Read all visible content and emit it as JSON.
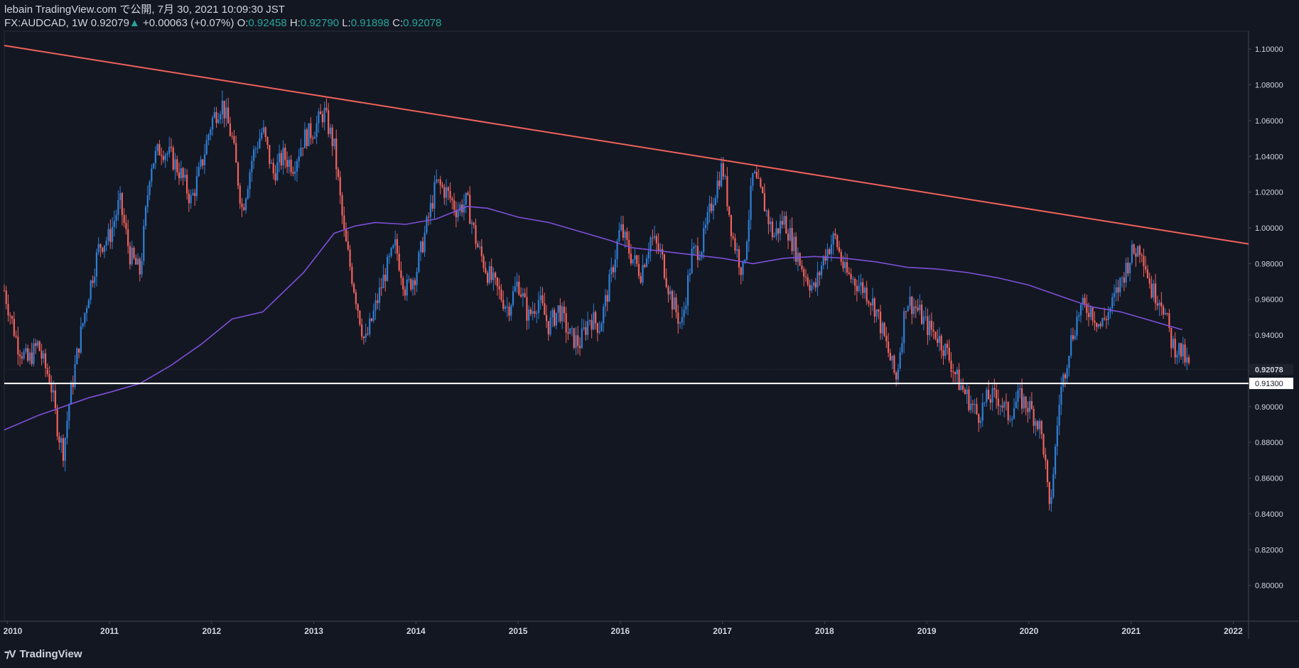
{
  "header": {
    "publisher_line": "lebain TradingView.com で公開, 7月 30, 2021 10:09:30 JST",
    "symbol": "FX:AUDCAD, 1W",
    "last": "0.92079",
    "change_arrow": "▲",
    "change": "+0.00063 (+0.07%)",
    "open_label": "O:",
    "open": "0.92458",
    "high_label": "H:",
    "high": "0.92790",
    "low_label": "L:",
    "low": "0.91898",
    "close_label": "C:",
    "close": "0.92078"
  },
  "brand": {
    "name": "TradingView",
    "logo_icon": "tradingview-logo-icon"
  },
  "colors": {
    "background": "#131722",
    "up_candle": "#2f7fd6",
    "down_candle": "#f0625c",
    "trendline": "#f0625c",
    "moving_average": "#7e4fd8",
    "support_line": "#ffffff",
    "axis_text": "#d1d4dc",
    "ohlc_value": "#26a69a"
  },
  "chart_data": {
    "type": "candlestick",
    "x_axis_labels": [
      "2010",
      "2011",
      "2012",
      "2013",
      "2014",
      "2015",
      "2016",
      "2017",
      "2018",
      "2019",
      "2020",
      "2021",
      "2022"
    ],
    "y_axis_labels": [
      "1.10000",
      "1.08000",
      "1.06000",
      "1.04000",
      "1.02000",
      "1.00000",
      "0.98000",
      "0.96000",
      "0.94000",
      "0.92000",
      "0.90000",
      "0.88000",
      "0.86000",
      "0.84000",
      "0.82000",
      "0.80000"
    ],
    "ylim": [
      0.78,
      1.11
    ],
    "xlim": [
      2009.97,
      2022.15
    ],
    "price_markers": [
      {
        "label": "0.92078",
        "value": 0.92078
      },
      {
        "label": "0.91300",
        "value": 0.913
      }
    ],
    "support_level": 0.913,
    "trendline": {
      "from": [
        2009.97,
        1.102
      ],
      "to": [
        2022.15,
        0.991
      ]
    },
    "moving_average": {
      "x": [
        2009.97,
        2010.3,
        2010.5,
        2010.8,
        2011.0,
        2011.3,
        2011.6,
        2011.9,
        2012.2,
        2012.5,
        2012.9,
        2013.2,
        2013.4,
        2013.6,
        2013.9,
        2014.2,
        2014.5,
        2014.7,
        2015.0,
        2015.3,
        2015.6,
        2015.9,
        2016.1,
        2016.4,
        2016.7,
        2017.0,
        2017.3,
        2017.6,
        2017.9,
        2018.2,
        2018.5,
        2018.8,
        2019.1,
        2019.4,
        2019.7,
        2020.0,
        2020.3,
        2020.6,
        2020.9,
        2021.2,
        2021.5
      ],
      "y": [
        0.887,
        0.895,
        0.899,
        0.905,
        0.908,
        0.913,
        0.923,
        0.935,
        0.949,
        0.953,
        0.975,
        0.997,
        1.001,
        1.003,
        1.002,
        1.005,
        1.012,
        1.011,
        1.006,
        1.003,
        0.998,
        0.993,
        0.989,
        0.987,
        0.985,
        0.983,
        0.98,
        0.983,
        0.984,
        0.983,
        0.981,
        0.978,
        0.977,
        0.975,
        0.972,
        0.968,
        0.962,
        0.956,
        0.953,
        0.948,
        0.943
      ]
    },
    "price_path": {
      "x": [
        2009.97,
        2010.1,
        2010.2,
        2010.3,
        2010.35,
        2010.42,
        2010.5,
        2010.55,
        2010.6,
        2010.7,
        2010.8,
        2010.9,
        2011.0,
        2011.1,
        2011.2,
        2011.3,
        2011.4,
        2011.5,
        2011.6,
        2011.7,
        2011.8,
        2011.9,
        2012.0,
        2012.1,
        2012.2,
        2012.3,
        2012.4,
        2012.5,
        2012.6,
        2012.7,
        2012.8,
        2012.9,
        2013.0,
        2013.1,
        2013.2,
        2013.3,
        2013.4,
        2013.5,
        2013.6,
        2013.7,
        2013.8,
        2013.9,
        2014.0,
        2014.1,
        2014.2,
        2014.3,
        2014.4,
        2014.5,
        2014.6,
        2014.7,
        2014.8,
        2014.9,
        2015.0,
        2015.1,
        2015.2,
        2015.3,
        2015.4,
        2015.5,
        2015.6,
        2015.7,
        2015.8,
        2015.9,
        2016.0,
        2016.1,
        2016.2,
        2016.3,
        2016.4,
        2016.5,
        2016.6,
        2016.7,
        2016.8,
        2016.9,
        2017.0,
        2017.1,
        2017.2,
        2017.3,
        2017.4,
        2017.5,
        2017.6,
        2017.7,
        2017.8,
        2017.9,
        2018.0,
        2018.1,
        2018.2,
        2018.3,
        2018.4,
        2018.5,
        2018.6,
        2018.7,
        2018.8,
        2018.9,
        2019.0,
        2019.1,
        2019.2,
        2019.3,
        2019.4,
        2019.5,
        2019.6,
        2019.7,
        2019.8,
        2019.9,
        2020.0,
        2020.1,
        2020.15,
        2020.2,
        2020.25,
        2020.3,
        2020.4,
        2020.5,
        2020.6,
        2020.7,
        2020.8,
        2020.9,
        2021.0,
        2021.1,
        2021.2,
        2021.3,
        2021.4,
        2021.5,
        2021.57
      ],
      "y": [
        0.965,
        0.935,
        0.925,
        0.935,
        0.925,
        0.915,
        0.885,
        0.875,
        0.9,
        0.935,
        0.965,
        0.99,
        0.995,
        1.015,
        0.985,
        0.975,
        1.035,
        1.045,
        1.04,
        1.03,
        1.015,
        1.035,
        1.06,
        1.07,
        1.05,
        1.01,
        1.04,
        1.055,
        1.03,
        1.04,
        1.035,
        1.05,
        1.055,
        1.065,
        1.045,
        0.995,
        0.965,
        0.935,
        0.955,
        0.975,
        0.99,
        0.965,
        0.975,
        1.0,
        1.025,
        1.02,
        1.01,
        1.015,
        0.99,
        0.975,
        0.965,
        0.955,
        0.97,
        0.95,
        0.96,
        0.945,
        0.955,
        0.94,
        0.935,
        0.95,
        0.945,
        0.97,
        1.0,
        0.985,
        0.975,
        0.995,
        0.985,
        0.96,
        0.945,
        0.985,
        0.99,
        1.015,
        1.035,
        0.995,
        0.975,
        1.03,
        1.015,
        0.995,
        1.005,
        0.99,
        0.975,
        0.965,
        0.985,
        0.995,
        0.975,
        0.97,
        0.965,
        0.955,
        0.935,
        0.915,
        0.96,
        0.955,
        0.945,
        0.94,
        0.93,
        0.915,
        0.905,
        0.895,
        0.905,
        0.905,
        0.895,
        0.905,
        0.9,
        0.89,
        0.875,
        0.84,
        0.87,
        0.905,
        0.935,
        0.955,
        0.955,
        0.945,
        0.955,
        0.97,
        0.985,
        0.99,
        0.965,
        0.96,
        0.935,
        0.93,
        0.921
      ]
    }
  }
}
